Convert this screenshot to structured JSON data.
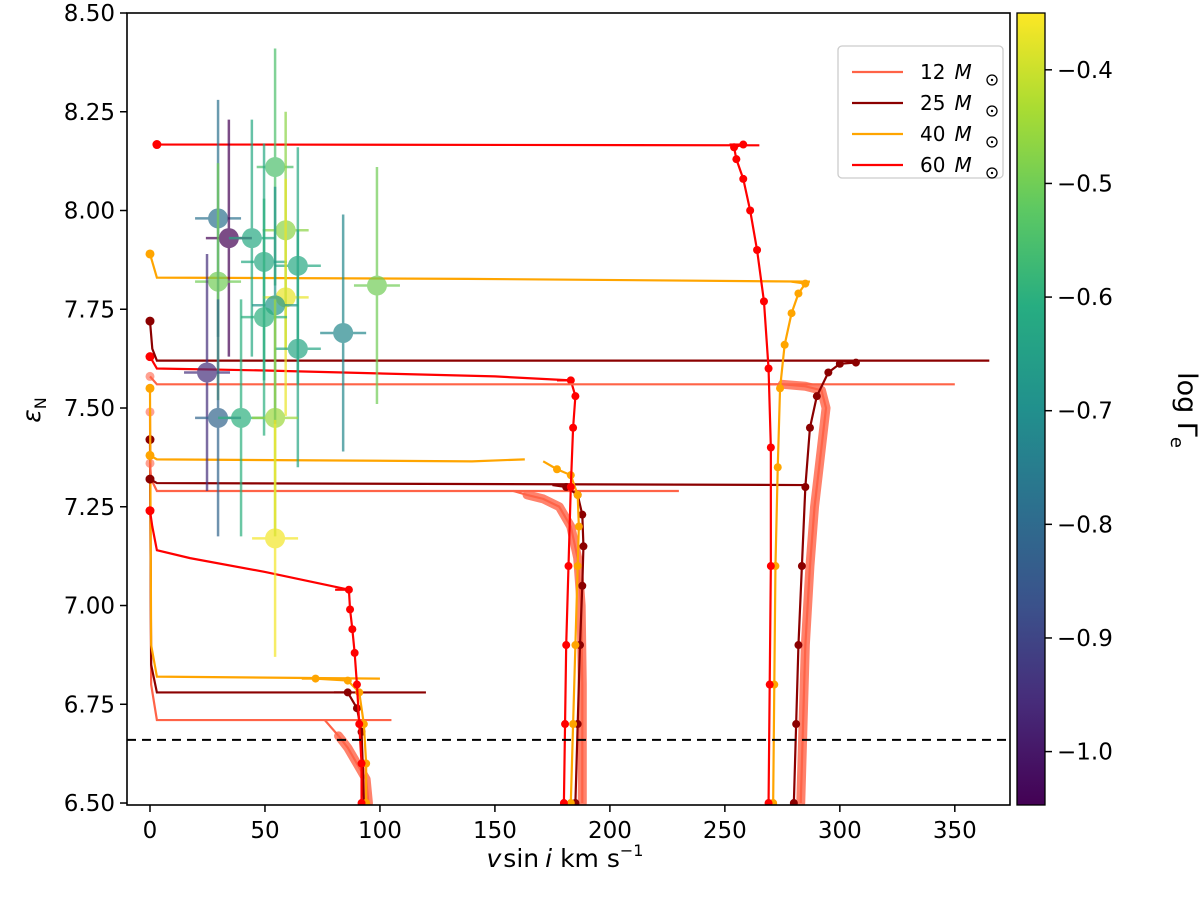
{
  "chart_data": {
    "type": "scatter",
    "xlabel": "v sin i km s⁻¹",
    "xlabel_parts": {
      "v": "v",
      "sin": "sin",
      "i": "i",
      "unit": "km s",
      "exp": "−1"
    },
    "ylabel": "ε_N",
    "ylabel_parts": {
      "sym": "ε",
      "sub": "N"
    },
    "xlim": [
      -10,
      374
    ],
    "ylim": [
      6.495,
      8.5
    ],
    "x_ticks": [
      0,
      50,
      100,
      150,
      200,
      250,
      300,
      350
    ],
    "x_tick_labels": [
      "0",
      "50",
      "100",
      "150",
      "200",
      "250",
      "300",
      "350"
    ],
    "y_ticks": [
      6.5,
      6.75,
      7.0,
      7.25,
      7.5,
      7.75,
      8.0,
      8.25,
      8.5
    ],
    "y_tick_labels": [
      "6.50",
      "6.75",
      "7.00",
      "7.25",
      "7.50",
      "7.75",
      "8.00",
      "8.25",
      "8.50"
    ],
    "grid": false,
    "reference_line": {
      "y": 6.66,
      "style": "dashed",
      "color": "#000000"
    },
    "colorbar": {
      "label": "log Γ",
      "label_sub": "e",
      "colormap": "viridis",
      "range": [
        -1.047,
        -0.35
      ],
      "ticks": [
        -0.4,
        -0.5,
        -0.6,
        -0.7,
        -0.8,
        -0.9,
        -1.0
      ],
      "tick_labels": [
        "−0.4",
        "−0.5",
        "−0.6",
        "−0.7",
        "−0.8",
        "−0.9",
        "−1.0"
      ]
    },
    "legend": {
      "placement": "top-right",
      "entries": [
        {
          "mass": "12",
          "unit": "M",
          "color": "#ff6347"
        },
        {
          "mass": "25",
          "unit": "M",
          "color": "#8b0000"
        },
        {
          "mass": "40",
          "unit": "M",
          "color": "#ffa500"
        },
        {
          "mass": "60",
          "unit": "M",
          "color": "#ff0000"
        }
      ]
    },
    "tracks": [
      {
        "mass": "12",
        "color": "#ff6347",
        "dense": true,
        "points": [
          [
            105,
            6.71
          ],
          [
            3,
            6.71
          ],
          [
            0.5,
            6.8
          ],
          [
            0,
            7.49
          ]
        ],
        "rise": [
          [
            95,
            6.5
          ],
          [
            94,
            6.56
          ],
          [
            90,
            6.6
          ],
          [
            86,
            6.64
          ],
          [
            82,
            6.67
          ]
        ]
      },
      {
        "mass": "25",
        "color": "#8b0000",
        "dense": false,
        "points": [
          [
            120,
            6.78
          ],
          [
            3,
            6.78
          ],
          [
            0.5,
            6.85
          ],
          [
            0,
            7.42
          ]
        ],
        "rise": [
          [
            93,
            6.5
          ],
          [
            92.5,
            6.6
          ],
          [
            92,
            6.68
          ],
          [
            90,
            6.74
          ],
          [
            86,
            6.78
          ]
        ]
      },
      {
        "mass": "40",
        "color": "#ffa500",
        "dense": false,
        "points": [
          [
            100,
            6.815
          ],
          [
            3,
            6.82
          ],
          [
            0.5,
            6.9
          ],
          [
            0,
            7.55
          ]
        ],
        "rise": [
          [
            94,
            6.5
          ],
          [
            94,
            6.6
          ],
          [
            93,
            6.7
          ],
          [
            91,
            6.78
          ],
          [
            86,
            6.81
          ],
          [
            72,
            6.815
          ]
        ]
      },
      {
        "mass": "60",
        "color": "#ff0000",
        "dense": false,
        "points": [
          [
            86.5,
            7.04
          ],
          [
            50,
            7.085
          ],
          [
            17.4,
            7.12
          ],
          [
            3,
            7.14
          ],
          [
            1,
            7.2
          ],
          [
            0,
            7.24
          ]
        ],
        "rise": [
          [
            92,
            6.5
          ],
          [
            92,
            6.6
          ],
          [
            91,
            6.7
          ],
          [
            90,
            6.8
          ],
          [
            89,
            6.88
          ],
          [
            88,
            6.94
          ],
          [
            87,
            6.99
          ],
          [
            86.5,
            7.04
          ]
        ]
      },
      {
        "mass": "12",
        "color": "#ff6347",
        "dense": true,
        "points": [
          [
            230,
            7.29
          ],
          [
            3,
            7.29
          ],
          [
            0.5,
            7.32
          ],
          [
            0,
            7.36
          ]
        ],
        "rise": [
          [
            188,
            6.5
          ],
          [
            188,
            6.8
          ],
          [
            187.5,
            7.0
          ],
          [
            186,
            7.12
          ],
          [
            183,
            7.2
          ],
          [
            178,
            7.25
          ],
          [
            171,
            7.27
          ],
          [
            164,
            7.28
          ]
        ]
      },
      {
        "mass": "25",
        "color": "#8b0000",
        "dense": false,
        "points": [
          [
            285,
            7.305
          ],
          [
            3,
            7.31
          ],
          [
            0,
            7.32
          ]
        ],
        "rise": [
          [
            185,
            6.5
          ],
          [
            186,
            6.7
          ],
          [
            187,
            6.9
          ],
          [
            188,
            7.05
          ],
          [
            188.5,
            7.15
          ],
          [
            188,
            7.23
          ],
          [
            186,
            7.28
          ],
          [
            181,
            7.3
          ]
        ]
      },
      {
        "mass": "40",
        "color": "#ffa500",
        "dense": false,
        "points": [
          [
            163,
            7.37
          ],
          [
            140,
            7.365
          ],
          [
            3,
            7.37
          ],
          [
            0,
            7.38
          ]
        ],
        "rise": [
          [
            183,
            6.5
          ],
          [
            184,
            6.7
          ],
          [
            185,
            6.9
          ],
          [
            186,
            7.1
          ],
          [
            186.5,
            7.2
          ],
          [
            186,
            7.28
          ],
          [
            183,
            7.33
          ],
          [
            177,
            7.345
          ]
        ]
      },
      {
        "mass": "60",
        "color": "#ff0000",
        "dense": false,
        "points": [
          [
            183,
            7.57
          ],
          [
            150,
            7.58
          ],
          [
            50,
            7.595
          ],
          [
            3,
            7.6
          ],
          [
            0,
            7.63
          ]
        ],
        "rise": [
          [
            180,
            6.5
          ],
          [
            180.5,
            6.7
          ],
          [
            181,
            6.9
          ],
          [
            182,
            7.1
          ],
          [
            183,
            7.3
          ],
          [
            184,
            7.45
          ],
          [
            185,
            7.53
          ],
          [
            183,
            7.57
          ]
        ]
      },
      {
        "mass": "12",
        "color": "#ff6347",
        "dense": true,
        "points": [
          [
            350,
            7.56
          ],
          [
            3,
            7.56
          ],
          [
            0,
            7.58
          ]
        ],
        "rise": [
          [
            283,
            6.5
          ],
          [
            284,
            6.7
          ],
          [
            285,
            6.9
          ],
          [
            287,
            7.1
          ],
          [
            289,
            7.25
          ],
          [
            292,
            7.4
          ],
          [
            294,
            7.5
          ],
          [
            292,
            7.545
          ],
          [
            285,
            7.555
          ],
          [
            275,
            7.56
          ]
        ]
      },
      {
        "mass": "25",
        "color": "#8b0000",
        "dense": false,
        "points": [
          [
            365,
            7.62
          ],
          [
            3,
            7.62
          ],
          [
            1,
            7.65
          ],
          [
            0,
            7.72
          ]
        ],
        "rise": [
          [
            280,
            6.5
          ],
          [
            281,
            6.7
          ],
          [
            282,
            6.9
          ],
          [
            283.5,
            7.1
          ],
          [
            285,
            7.3
          ],
          [
            287,
            7.45
          ],
          [
            290,
            7.53
          ],
          [
            295,
            7.59
          ],
          [
            300,
            7.612
          ],
          [
            307,
            7.615
          ]
        ]
      },
      {
        "mass": "40",
        "color": "#ffa500",
        "dense": false,
        "points": [
          [
            287,
            7.82
          ],
          [
            138,
            7.827
          ],
          [
            3,
            7.83
          ],
          [
            0,
            7.89
          ]
        ],
        "rise": [
          [
            271,
            6.5
          ],
          [
            271.5,
            6.8
          ],
          [
            272,
            7.1
          ],
          [
            273,
            7.35
          ],
          [
            274,
            7.55
          ],
          [
            276,
            7.66
          ],
          [
            279,
            7.74
          ],
          [
            282,
            7.79
          ],
          [
            285,
            7.815
          ]
        ]
      },
      {
        "mass": "60",
        "color": "#ff0000",
        "dense": false,
        "points": [
          [
            265,
            8.165
          ],
          [
            40,
            8.167
          ],
          [
            3,
            8.167
          ]
        ],
        "rise": [
          [
            269,
            6.5
          ],
          [
            269.5,
            6.8
          ],
          [
            270,
            7.1
          ],
          [
            270,
            7.4
          ],
          [
            269,
            7.6
          ],
          [
            267,
            7.77
          ],
          [
            264,
            7.9
          ],
          [
            261,
            8.0
          ],
          [
            258,
            8.08
          ],
          [
            255,
            8.13
          ],
          [
            254,
            8.16
          ],
          [
            258,
            8.167
          ]
        ]
      }
    ],
    "observations": [
      {
        "x": 29.6,
        "y": 7.98,
        "xerr": 10,
        "yerr": 0.3,
        "log_gamma_e": -0.78
      },
      {
        "x": 34.3,
        "y": 7.93,
        "xerr": 10,
        "yerr": 0.3,
        "log_gamma_e": -1.05
      },
      {
        "x": 44.3,
        "y": 7.93,
        "xerr": 10,
        "yerr": 0.3,
        "log_gamma_e": -0.62
      },
      {
        "x": 54.4,
        "y": 8.11,
        "xerr": 8,
        "yerr": 0.3,
        "log_gamma_e": -0.55
      },
      {
        "x": 59.0,
        "y": 7.95,
        "xerr": 10,
        "yerr": 0.3,
        "log_gamma_e": -0.47
      },
      {
        "x": 29.6,
        "y": 7.82,
        "xerr": 10,
        "yerr": 0.3,
        "log_gamma_e": -0.5
      },
      {
        "x": 49.6,
        "y": 7.87,
        "xerr": 10,
        "yerr": 0.3,
        "log_gamma_e": -0.62
      },
      {
        "x": 64.3,
        "y": 7.86,
        "xerr": 10,
        "yerr": 0.3,
        "log_gamma_e": -0.62
      },
      {
        "x": 59.0,
        "y": 7.78,
        "xerr": 10,
        "yerr": 0.3,
        "log_gamma_e": -0.37
      },
      {
        "x": 54.4,
        "y": 7.76,
        "xerr": 10,
        "yerr": 0.3,
        "log_gamma_e": -0.68
      },
      {
        "x": 49.6,
        "y": 7.73,
        "xerr": 10,
        "yerr": 0.3,
        "log_gamma_e": -0.6
      },
      {
        "x": 98.7,
        "y": 7.81,
        "xerr": 10,
        "yerr": 0.3,
        "log_gamma_e": -0.5
      },
      {
        "x": 84.0,
        "y": 7.69,
        "xerr": 10,
        "yerr": 0.3,
        "log_gamma_e": -0.72
      },
      {
        "x": 64.3,
        "y": 7.65,
        "xerr": 10,
        "yerr": 0.3,
        "log_gamma_e": -0.63
      },
      {
        "x": 24.8,
        "y": 7.59,
        "xerr": 10,
        "yerr": 0.3,
        "log_gamma_e": -0.95
      },
      {
        "x": 29.6,
        "y": 7.475,
        "xerr": 10,
        "yerr": 0.3,
        "log_gamma_e": -0.82
      },
      {
        "x": 39.6,
        "y": 7.475,
        "xerr": 10,
        "yerr": 0.3,
        "log_gamma_e": -0.6
      },
      {
        "x": 54.4,
        "y": 7.475,
        "xerr": 10,
        "yerr": 0.3,
        "log_gamma_e": -0.45
      },
      {
        "x": 54.4,
        "y": 7.17,
        "xerr": 10,
        "yerr": 0.3,
        "log_gamma_e": -0.36
      }
    ]
  }
}
